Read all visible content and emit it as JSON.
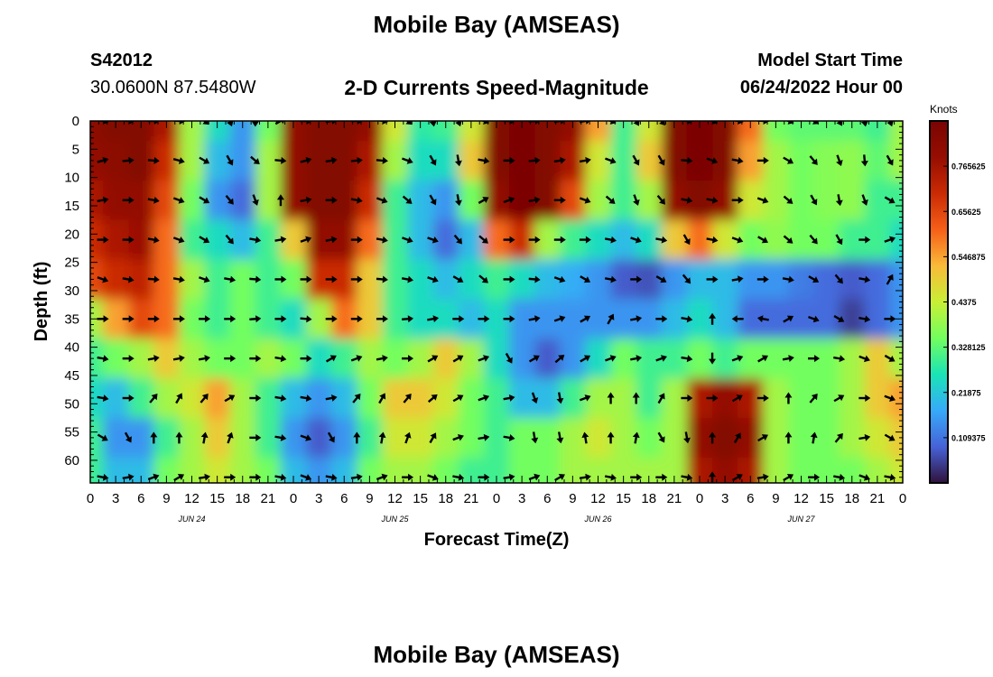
{
  "figure": {
    "title": "Mobile Bay (AMSEAS)",
    "station_id": "S42012",
    "station_coords": "30.0600N  87.5480W",
    "plot_title": "2-D Currents Speed-Magnitude",
    "model_start_label": "Model Start Time",
    "model_start_value": "06/24/2022 Hour 00",
    "repeat_title": "Mobile Bay (AMSEAS)"
  },
  "chart_data": {
    "type": "heatmap",
    "title": "2-D Currents Speed-Magnitude",
    "xlabel": "Forecast Time(Z)",
    "ylabel": "Depth (ft)",
    "x_tick_labels": [
      "0",
      "3",
      "6",
      "9",
      "12",
      "15",
      "18",
      "21",
      "0",
      "3",
      "6",
      "9",
      "12",
      "15",
      "18",
      "21",
      "0",
      "3",
      "6",
      "9",
      "12",
      "15",
      "18",
      "21",
      "0",
      "3",
      "6",
      "9",
      "12",
      "15",
      "18",
      "21",
      "0"
    ],
    "x_day_labels": [
      "JUN 24",
      "JUN 25",
      "JUN 26",
      "JUN 27"
    ],
    "x_range_hours": [
      0,
      96
    ],
    "y_ticks": [
      0,
      5,
      10,
      15,
      20,
      25,
      30,
      35,
      40,
      45,
      50,
      55,
      60
    ],
    "y_range": [
      0,
      64
    ],
    "y_inverted": true,
    "colorbar": {
      "label": "Knots",
      "tick_labels": [
        "0.765625",
        "0.65625",
        "0.546875",
        "0.4375",
        "0.328125",
        "0.21875",
        "0.109375"
      ],
      "tick_values": [
        0.765625,
        0.65625,
        0.546875,
        0.4375,
        0.328125,
        0.21875,
        0.109375
      ],
      "range": [
        0,
        0.875
      ],
      "colormap": "turbo"
    },
    "speed_grid": {
      "depths_ft": [
        0,
        7,
        14,
        21,
        28,
        35,
        42,
        49,
        56,
        63
      ],
      "times_h": [
        0,
        3,
        6,
        9,
        12,
        15,
        18,
        21,
        24,
        27,
        30,
        33,
        36,
        39,
        42,
        45,
        48,
        51,
        54,
        57,
        60,
        63,
        66,
        69,
        72,
        75,
        78,
        81,
        84,
        87,
        90,
        93,
        96
      ],
      "values_knots": [
        [
          0.82,
          0.85,
          0.85,
          0.75,
          0.4,
          0.25,
          0.15,
          0.35,
          0.8,
          0.85,
          0.85,
          0.8,
          0.45,
          0.28,
          0.3,
          0.45,
          0.85,
          0.87,
          0.85,
          0.8,
          0.55,
          0.3,
          0.45,
          0.85,
          0.87,
          0.85,
          0.6,
          0.35,
          0.33,
          0.33,
          0.33,
          0.3,
          0.4
        ],
        [
          0.8,
          0.82,
          0.85,
          0.7,
          0.4,
          0.2,
          0.15,
          0.4,
          0.8,
          0.85,
          0.85,
          0.75,
          0.4,
          0.25,
          0.25,
          0.5,
          0.85,
          0.87,
          0.85,
          0.75,
          0.45,
          0.3,
          0.5,
          0.85,
          0.87,
          0.85,
          0.55,
          0.4,
          0.35,
          0.37,
          0.38,
          0.33,
          0.4
        ],
        [
          0.75,
          0.8,
          0.8,
          0.65,
          0.35,
          0.15,
          0.1,
          0.4,
          0.8,
          0.85,
          0.85,
          0.7,
          0.3,
          0.2,
          0.15,
          0.35,
          0.8,
          0.87,
          0.85,
          0.65,
          0.4,
          0.3,
          0.4,
          0.8,
          0.85,
          0.8,
          0.45,
          0.4,
          0.35,
          0.37,
          0.38,
          0.3,
          0.3
        ],
        [
          0.7,
          0.75,
          0.78,
          0.6,
          0.3,
          0.25,
          0.2,
          0.3,
          0.5,
          0.8,
          0.8,
          0.6,
          0.3,
          0.2,
          0.1,
          0.2,
          0.6,
          0.7,
          0.4,
          0.3,
          0.25,
          0.2,
          0.25,
          0.5,
          0.6,
          0.45,
          0.35,
          0.38,
          0.35,
          0.35,
          0.3,
          0.3,
          0.25
        ],
        [
          0.65,
          0.7,
          0.72,
          0.6,
          0.4,
          0.3,
          0.35,
          0.3,
          0.35,
          0.7,
          0.7,
          0.5,
          0.3,
          0.25,
          0.2,
          0.25,
          0.3,
          0.25,
          0.2,
          0.18,
          0.15,
          0.08,
          0.07,
          0.15,
          0.2,
          0.2,
          0.15,
          0.15,
          0.12,
          0.1,
          0.08,
          0.1,
          0.15
        ],
        [
          0.4,
          0.55,
          0.65,
          0.6,
          0.35,
          0.3,
          0.35,
          0.3,
          0.25,
          0.4,
          0.6,
          0.5,
          0.3,
          0.25,
          0.25,
          0.2,
          0.25,
          0.15,
          0.15,
          0.15,
          0.15,
          0.15,
          0.15,
          0.2,
          0.25,
          0.2,
          0.1,
          0.1,
          0.1,
          0.1,
          0.05,
          0.1,
          0.15
        ],
        [
          0.3,
          0.35,
          0.4,
          0.5,
          0.4,
          0.35,
          0.35,
          0.4,
          0.35,
          0.25,
          0.3,
          0.4,
          0.35,
          0.4,
          0.5,
          0.4,
          0.25,
          0.15,
          0.08,
          0.15,
          0.25,
          0.35,
          0.3,
          0.3,
          0.35,
          0.3,
          0.35,
          0.35,
          0.35,
          0.35,
          0.4,
          0.5,
          0.4
        ],
        [
          0.25,
          0.2,
          0.3,
          0.4,
          0.45,
          0.55,
          0.4,
          0.3,
          0.2,
          0.15,
          0.2,
          0.35,
          0.5,
          0.5,
          0.45,
          0.35,
          0.3,
          0.2,
          0.2,
          0.3,
          0.4,
          0.4,
          0.3,
          0.4,
          0.75,
          0.8,
          0.75,
          0.4,
          0.35,
          0.35,
          0.4,
          0.5,
          0.55
        ],
        [
          0.3,
          0.15,
          0.15,
          0.3,
          0.4,
          0.5,
          0.4,
          0.3,
          0.15,
          0.08,
          0.15,
          0.3,
          0.45,
          0.45,
          0.4,
          0.35,
          0.3,
          0.35,
          0.35,
          0.4,
          0.45,
          0.4,
          0.35,
          0.4,
          0.8,
          0.85,
          0.8,
          0.4,
          0.35,
          0.35,
          0.4,
          0.45,
          0.5
        ],
        [
          0.3,
          0.2,
          0.2,
          0.35,
          0.4,
          0.45,
          0.4,
          0.35,
          0.2,
          0.15,
          0.2,
          0.35,
          0.4,
          0.4,
          0.35,
          0.3,
          0.3,
          0.35,
          0.35,
          0.4,
          0.4,
          0.4,
          0.4,
          0.4,
          0.75,
          0.8,
          0.75,
          0.4,
          0.35,
          0.35,
          0.35,
          0.4,
          0.45
        ]
      ]
    },
    "direction_grid_deg": {
      "depths_ft": [
        0,
        7,
        14,
        21,
        28,
        35,
        42,
        49,
        56,
        63
      ],
      "times_h": [
        1.5,
        4.5,
        7.5,
        10.5,
        13.5,
        16.5,
        19.5,
        22.5,
        25.5,
        28.5,
        31.5,
        34.5,
        37.5,
        40.5,
        43.5,
        46.5,
        49.5,
        52.5,
        55.5,
        58.5,
        61.5,
        64.5,
        67.5,
        70.5,
        73.5,
        76.5,
        79.5,
        82.5,
        85.5,
        88.5,
        91.5,
        94.5
      ],
      "values": [
        [
          100,
          95,
          90,
          95,
          130,
          160,
          180,
          60,
          90,
          80,
          90,
          100,
          130,
          170,
          160,
          110,
          90,
          85,
          80,
          80,
          110,
          150,
          140,
          95,
          110,
          100,
          95,
          110,
          120,
          150,
          170,
          160
        ],
        [
          75,
          85,
          95,
          105,
          120,
          150,
          130,
          95,
          75,
          80,
          85,
          95,
          110,
          150,
          170,
          100,
          90,
          85,
          80,
          80,
          110,
          150,
          150,
          95,
          110,
          100,
          90,
          120,
          140,
          160,
          175,
          150
        ],
        [
          80,
          90,
          100,
          110,
          120,
          140,
          160,
          0,
          80,
          90,
          100,
          110,
          130,
          150,
          170,
          60,
          70,
          80,
          90,
          110,
          130,
          160,
          140,
          100,
          100,
          90,
          110,
          130,
          150,
          170,
          160,
          120
        ],
        [
          90,
          90,
          100,
          110,
          120,
          140,
          100,
          80,
          70,
          80,
          90,
          100,
          110,
          110,
          140,
          130,
          90,
          90,
          90,
          90,
          100,
          110,
          100,
          150,
          100,
          110,
          120,
          130,
          140,
          150,
          90,
          70
        ],
        [
          110,
          100,
          95,
          100,
          110,
          100,
          95,
          90,
          90,
          90,
          90,
          95,
          100,
          110,
          120,
          130,
          90,
          95,
          110,
          120,
          100,
          90,
          120,
          140,
          90,
          80,
          90,
          100,
          120,
          140,
          100,
          30
        ],
        [
          90,
          90,
          90,
          90,
          90,
          90,
          85,
          90,
          95,
          90,
          90,
          90,
          85,
          80,
          90,
          90,
          90,
          80,
          70,
          60,
          30,
          80,
          90,
          100,
          0,
          270,
          280,
          60,
          110,
          120,
          100,
          90
        ],
        [
          100,
          90,
          80,
          80,
          80,
          90,
          90,
          100,
          90,
          60,
          70,
          80,
          90,
          60,
          60,
          70,
          150,
          60,
          50,
          60,
          70,
          80,
          70,
          100,
          180,
          70,
          60,
          80,
          90,
          100,
          110,
          120
        ],
        [
          100,
          90,
          40,
          30,
          40,
          60,
          90,
          100,
          100,
          80,
          40,
          30,
          40,
          50,
          60,
          70,
          80,
          160,
          170,
          70,
          0,
          0,
          30,
          90,
          90,
          60,
          90,
          0,
          40,
          60,
          90,
          110
        ],
        [
          120,
          150,
          0,
          0,
          10,
          20,
          90,
          100,
          110,
          150,
          0,
          10,
          20,
          30,
          70,
          80,
          100,
          170,
          170,
          350,
          0,
          10,
          150,
          170,
          0,
          30,
          60,
          0,
          10,
          40,
          80,
          120
        ],
        [
          100,
          80,
          70,
          60,
          80,
          90,
          90,
          100,
          110,
          100,
          80,
          70,
          90,
          110,
          100,
          90,
          80,
          70,
          60,
          80,
          100,
          90,
          90,
          100,
          0,
          60,
          80,
          60,
          90,
          100,
          110,
          100
        ]
      ]
    }
  }
}
